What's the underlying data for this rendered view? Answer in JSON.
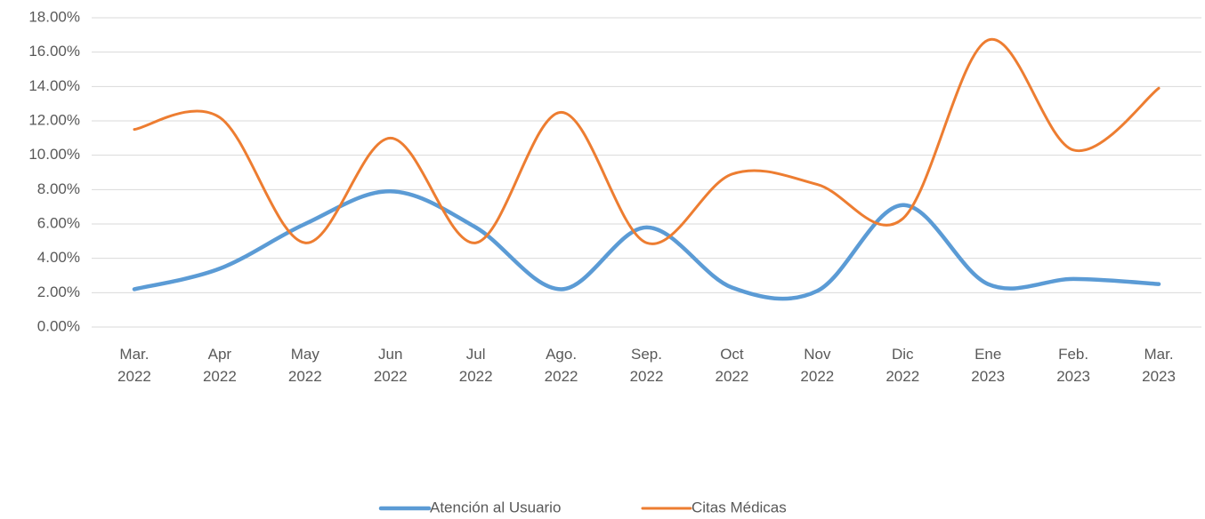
{
  "chart_data": {
    "type": "line",
    "categories": [
      "Mar. 2022",
      "Apr 2022",
      "May 2022",
      "Jun 2022",
      "Jul 2022",
      "Ago. 2022",
      "Sep. 2022",
      "Oct 2022",
      "Nov 2022",
      "Dic 2022",
      "Ene 2023",
      "Feb. 2023",
      "Mar. 2023"
    ],
    "series": [
      {
        "name": "Atención al Usuario",
        "color": "#5b9bd5",
        "values": [
          2.2,
          3.4,
          6.0,
          7.9,
          5.8,
          2.2,
          5.8,
          2.3,
          2.1,
          7.1,
          2.5,
          2.8,
          2.5
        ]
      },
      {
        "name": "Citas Médicas",
        "color": "#ed7d31",
        "values": [
          11.5,
          12.2,
          4.9,
          11.0,
          4.9,
          12.5,
          4.9,
          8.9,
          8.3,
          6.3,
          16.7,
          10.3,
          13.9
        ]
      }
    ],
    "ylim": [
      0,
      18
    ],
    "yticks": [
      {
        "value": 0,
        "label": "0.00%"
      },
      {
        "value": 2,
        "label": "2.00%"
      },
      {
        "value": 4,
        "label": "4.00%"
      },
      {
        "value": 6,
        "label": "6.00%"
      },
      {
        "value": 8,
        "label": "8.00%"
      },
      {
        "value": 10,
        "label": "10.00%"
      },
      {
        "value": 12,
        "label": "12.00%"
      },
      {
        "value": 14,
        "label": "14.00%"
      },
      {
        "value": 16,
        "label": "16.00%"
      },
      {
        "value": 18,
        "label": "18.00%"
      }
    ],
    "grid": true,
    "smooth": true,
    "legend": "bottom"
  }
}
